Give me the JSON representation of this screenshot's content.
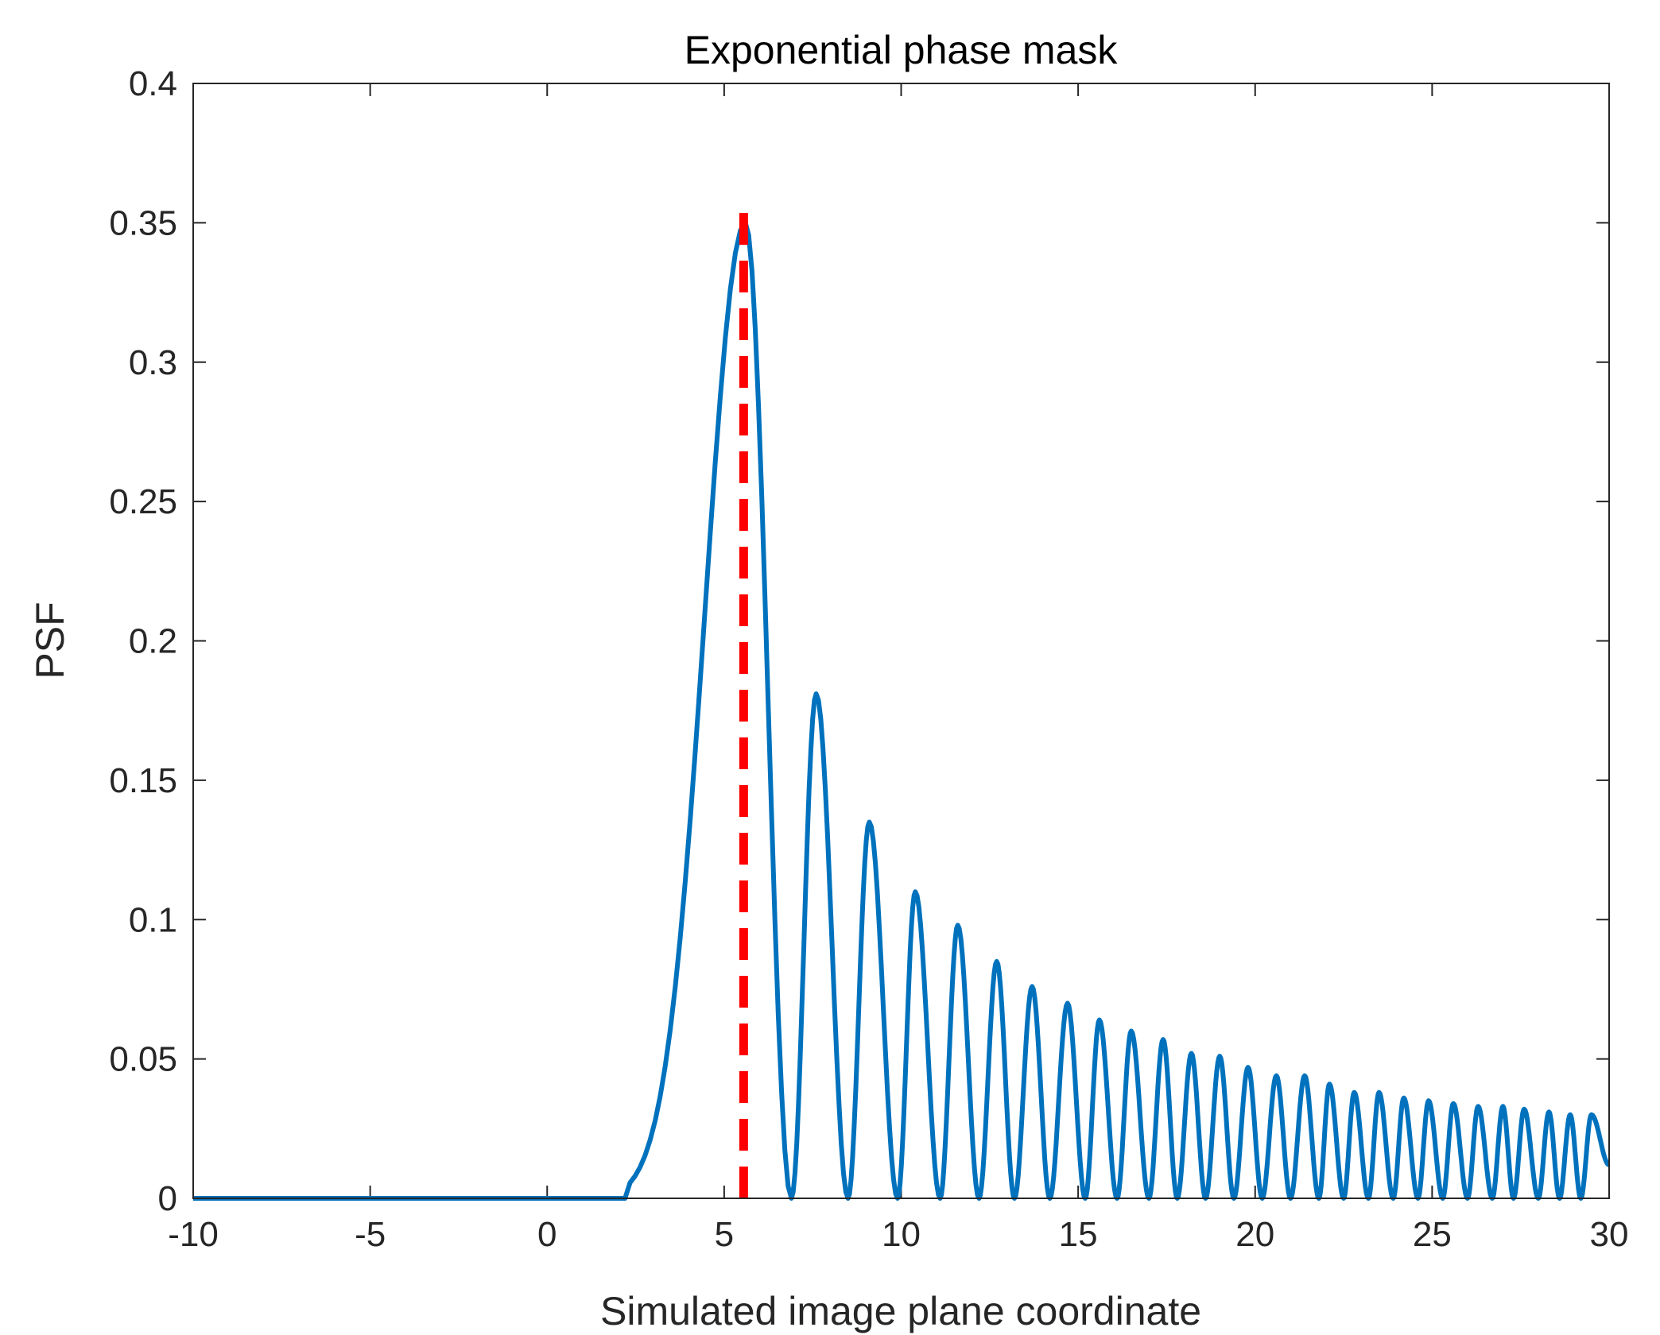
{
  "chart_data": {
    "type": "line",
    "title": "Exponential phase mask",
    "xlabel": "Simulated image plane coordinate",
    "ylabel": "PSF",
    "xlim": [
      -10,
      30
    ],
    "ylim": [
      0,
      0.4
    ],
    "grid": false,
    "x_ticks": [
      -10,
      -5,
      0,
      5,
      10,
      15,
      20,
      25,
      30
    ],
    "x_tick_labels": [
      "-10",
      "-5",
      "0",
      "5",
      "10",
      "15",
      "20",
      "25",
      "30"
    ],
    "y_ticks": [
      0,
      0.05,
      0.1,
      0.15,
      0.2,
      0.25,
      0.3,
      0.35,
      0.4
    ],
    "y_tick_labels": [
      "0",
      "0.05",
      "0.1",
      "0.15",
      "0.2",
      "0.25",
      "0.3",
      "0.35",
      "0.4"
    ],
    "series": [
      {
        "name": "PSF",
        "style": "solid",
        "color": "#0072BD",
        "onset": 2.2,
        "main_peak": {
          "x": 5.6,
          "y": 0.35
        },
        "side_peaks": [
          {
            "x": 7.6,
            "y": 0.181
          },
          {
            "x": 9.1,
            "y": 0.135
          },
          {
            "x": 10.4,
            "y": 0.11
          },
          {
            "x": 11.6,
            "y": 0.098
          },
          {
            "x": 12.7,
            "y": 0.085
          },
          {
            "x": 13.7,
            "y": 0.076
          },
          {
            "x": 14.7,
            "y": 0.07
          },
          {
            "x": 15.6,
            "y": 0.064
          },
          {
            "x": 16.5,
            "y": 0.06
          },
          {
            "x": 17.4,
            "y": 0.057
          },
          {
            "x": 18.2,
            "y": 0.052
          },
          {
            "x": 19.0,
            "y": 0.051
          },
          {
            "x": 19.8,
            "y": 0.047
          },
          {
            "x": 20.6,
            "y": 0.044
          },
          {
            "x": 21.4,
            "y": 0.044
          },
          {
            "x": 22.1,
            "y": 0.041
          },
          {
            "x": 22.8,
            "y": 0.038
          },
          {
            "x": 23.5,
            "y": 0.038
          },
          {
            "x": 24.2,
            "y": 0.036
          },
          {
            "x": 24.9,
            "y": 0.035
          },
          {
            "x": 25.6,
            "y": 0.034
          },
          {
            "x": 26.3,
            "y": 0.033
          },
          {
            "x": 27.0,
            "y": 0.033
          },
          {
            "x": 27.6,
            "y": 0.032
          },
          {
            "x": 28.3,
            "y": 0.031
          },
          {
            "x": 28.9,
            "y": 0.03
          },
          {
            "x": 29.5,
            "y": 0.03
          }
        ],
        "minima": [
          6.9,
          8.5,
          9.9,
          11.1,
          12.2,
          13.2,
          14.2,
          15.2,
          16.1,
          17.0,
          17.8,
          18.6,
          19.4,
          20.2,
          21.0,
          21.8,
          22.5,
          23.2,
          23.9,
          24.6,
          25.3,
          26.0,
          26.7,
          27.3,
          28.0,
          28.6,
          29.2
        ],
        "end_value": {
          "x": 30,
          "y": 0.012
        }
      },
      {
        "name": "peak marker",
        "style": "dashed",
        "color": "#FF0000",
        "x": [
          5.55,
          5.55
        ],
        "y": [
          0,
          0.355
        ]
      }
    ]
  }
}
